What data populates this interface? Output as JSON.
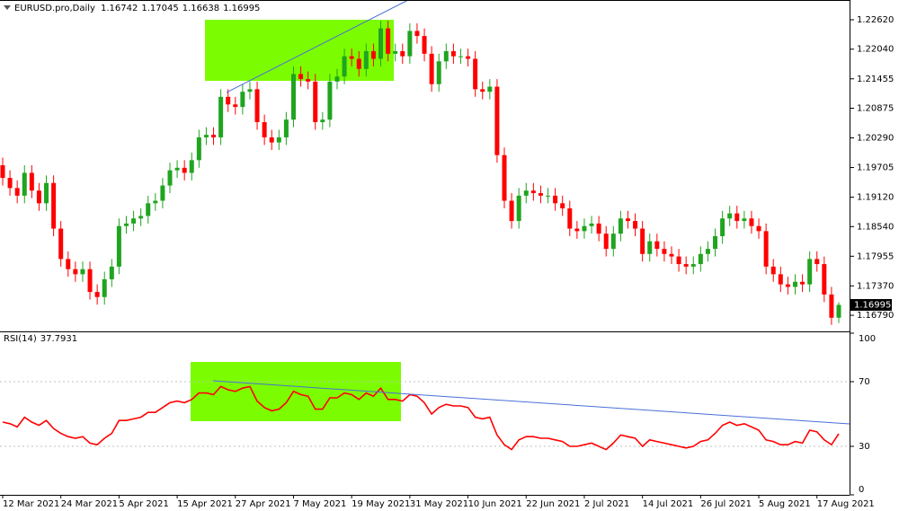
{
  "chart_data": [
    {
      "type": "candlestick",
      "title": "EURUSD.pro,Daily",
      "categories": [
        "12 Mar 2021",
        null,
        null,
        null,
        null,
        null,
        null,
        null,
        "24 Mar 2021",
        null,
        null,
        null,
        null,
        null,
        null,
        null,
        "5 Apr 2021",
        null,
        null,
        null,
        null,
        null,
        null,
        null,
        "15 Apr 2021",
        null,
        null,
        null,
        null,
        null,
        null,
        null,
        "27 Apr 2021",
        null,
        null,
        null,
        null,
        null,
        null,
        null,
        "7 May 2021",
        null,
        null,
        null,
        null,
        null,
        null,
        null,
        "19 May 2021",
        null,
        null,
        null,
        null,
        null,
        null,
        null,
        "31 May 2021",
        null,
        null,
        null,
        null,
        null,
        null,
        null,
        "10 Jun 2021",
        null,
        null,
        null,
        null,
        null,
        null,
        null,
        "22 Jun 2021",
        null,
        null,
        null,
        null,
        null,
        null,
        null,
        "2 Jul 2021",
        null,
        null,
        null,
        null,
        null,
        null,
        null,
        "14 Jul 2021",
        null,
        null,
        null,
        null,
        null,
        null,
        null,
        "26 Jul 2021",
        null,
        null,
        null,
        null,
        null,
        null,
        null,
        "5 Aug 2021",
        null,
        null,
        null,
        null,
        null,
        null,
        null,
        "17 Aug 2021",
        null,
        null,
        null
      ],
      "open": [
        1.1975,
        1.195,
        1.193,
        1.1915,
        1.196,
        1.1925,
        1.19,
        1.194,
        1.185,
        1.179,
        1.177,
        1.176,
        1.177,
        1.1725,
        1.1715,
        1.175,
        1.1775,
        1.1855,
        1.186,
        1.187,
        1.1875,
        1.19,
        1.1905,
        1.1935,
        1.1965,
        1.197,
        1.196,
        1.1985,
        1.203,
        1.2035,
        1.203,
        1.211,
        1.2095,
        1.209,
        1.212,
        1.2125,
        1.206,
        1.203,
        1.202,
        1.203,
        1.2065,
        1.2155,
        1.2145,
        1.214,
        1.206,
        1.2065,
        1.214,
        1.215,
        1.219,
        1.2185,
        1.2165,
        1.22,
        1.2185,
        1.2245,
        1.2195,
        1.22,
        1.219,
        1.224,
        1.223,
        1.2195,
        1.2135,
        1.218,
        1.22,
        1.219,
        1.219,
        1.2185,
        1.2125,
        1.212,
        1.213,
        1.1995,
        1.1905,
        1.1865,
        1.1915,
        1.1925,
        1.192,
        1.1915,
        1.1915,
        1.19,
        1.189,
        1.185,
        1.1845,
        1.1855,
        1.186,
        1.184,
        1.181,
        1.184,
        1.187,
        1.1865,
        1.185,
        1.18,
        1.1825,
        1.181,
        1.18,
        1.1795,
        1.178,
        1.1775,
        1.178,
        1.18,
        1.181,
        1.1835,
        1.187,
        1.188,
        1.1865,
        1.187,
        1.1855,
        1.1845,
        1.1775,
        1.176,
        1.174,
        1.1735,
        1.1745,
        1.174,
        1.179,
        1.178,
        1.172,
        1.16742
      ],
      "high": [
        1.199,
        1.1965,
        1.1945,
        1.1975,
        1.1975,
        1.194,
        1.1955,
        1.1955,
        1.1865,
        1.1805,
        1.1785,
        1.1785,
        1.1785,
        1.174,
        1.1765,
        1.179,
        1.187,
        1.1875,
        1.1885,
        1.189,
        1.1915,
        1.192,
        1.195,
        1.198,
        1.1985,
        1.1985,
        1.2,
        1.2045,
        1.205,
        1.205,
        1.2125,
        1.2125,
        1.211,
        1.2135,
        1.214,
        1.214,
        1.2075,
        1.2045,
        1.2045,
        1.208,
        1.217,
        1.217,
        1.216,
        1.2155,
        1.208,
        1.2155,
        1.2165,
        1.2205,
        1.2205,
        1.22,
        1.2215,
        1.2215,
        1.226,
        1.226,
        1.2215,
        1.2215,
        1.2255,
        1.2255,
        1.2245,
        1.221,
        1.2195,
        1.2215,
        1.2215,
        1.2205,
        1.2205,
        1.22,
        1.214,
        1.2145,
        1.2145,
        1.201,
        1.192,
        1.193,
        1.194,
        1.194,
        1.1935,
        1.193,
        1.193,
        1.1915,
        1.1905,
        1.1865,
        1.187,
        1.1875,
        1.1875,
        1.1855,
        1.1855,
        1.1885,
        1.1885,
        1.188,
        1.1865,
        1.184,
        1.184,
        1.1825,
        1.1815,
        1.181,
        1.1795,
        1.1795,
        1.1815,
        1.1825,
        1.185,
        1.1885,
        1.1895,
        1.1895,
        1.1885,
        1.1885,
        1.187,
        1.186,
        1.179,
        1.1775,
        1.1755,
        1.176,
        1.176,
        1.1805,
        1.1805,
        1.1795,
        1.1735,
        1.17045
      ],
      "low": [
        1.1935,
        1.1915,
        1.19,
        1.19,
        1.191,
        1.1885,
        1.1885,
        1.1835,
        1.1775,
        1.1755,
        1.1745,
        1.1745,
        1.171,
        1.17,
        1.17,
        1.1735,
        1.176,
        1.184,
        1.1845,
        1.1855,
        1.186,
        1.1885,
        1.189,
        1.192,
        1.195,
        1.1945,
        1.1945,
        1.197,
        1.2015,
        1.2015,
        1.2015,
        1.208,
        1.2075,
        1.2075,
        1.2105,
        1.2045,
        1.2015,
        1.2005,
        1.2005,
        1.2015,
        1.205,
        1.213,
        1.2125,
        1.2045,
        1.2045,
        1.205,
        1.2125,
        1.2135,
        1.217,
        1.215,
        1.215,
        1.217,
        1.217,
        1.218,
        1.218,
        1.2175,
        1.2175,
        1.2215,
        1.218,
        1.212,
        1.212,
        1.2165,
        1.2175,
        1.2175,
        1.217,
        1.211,
        1.2105,
        1.2105,
        1.198,
        1.189,
        1.185,
        1.185,
        1.19,
        1.1905,
        1.19,
        1.19,
        1.1885,
        1.1875,
        1.1835,
        1.183,
        1.183,
        1.184,
        1.1825,
        1.1795,
        1.1795,
        1.1825,
        1.185,
        1.1835,
        1.1785,
        1.1785,
        1.1795,
        1.1785,
        1.178,
        1.1765,
        1.176,
        1.176,
        1.1765,
        1.1785,
        1.1795,
        1.182,
        1.1855,
        1.185,
        1.185,
        1.184,
        1.183,
        1.176,
        1.1745,
        1.1725,
        1.172,
        1.172,
        1.1725,
        1.1725,
        1.1765,
        1.1705,
        1.166,
        1.16638
      ],
      "close": [
        1.195,
        1.193,
        1.1915,
        1.196,
        1.1925,
        1.19,
        1.194,
        1.185,
        1.179,
        1.177,
        1.176,
        1.177,
        1.1725,
        1.1715,
        1.175,
        1.1775,
        1.1855,
        1.186,
        1.187,
        1.1875,
        1.19,
        1.1905,
        1.1935,
        1.1965,
        1.197,
        1.196,
        1.1985,
        1.203,
        1.2035,
        1.203,
        1.211,
        1.2095,
        1.209,
        1.212,
        1.2125,
        1.206,
        1.203,
        1.202,
        1.203,
        1.2065,
        1.2155,
        1.2145,
        1.214,
        1.206,
        1.2065,
        1.214,
        1.215,
        1.219,
        1.2185,
        1.2165,
        1.22,
        1.2185,
        1.2245,
        1.2195,
        1.22,
        1.219,
        1.224,
        1.223,
        1.2195,
        1.2135,
        1.218,
        1.22,
        1.219,
        1.219,
        1.2185,
        1.2125,
        1.212,
        1.213,
        1.1995,
        1.1905,
        1.1865,
        1.1915,
        1.1925,
        1.192,
        1.1915,
        1.1915,
        1.19,
        1.189,
        1.185,
        1.1845,
        1.1855,
        1.186,
        1.184,
        1.181,
        1.184,
        1.187,
        1.1865,
        1.185,
        1.18,
        1.1825,
        1.181,
        1.18,
        1.1795,
        1.178,
        1.1775,
        1.178,
        1.18,
        1.181,
        1.1835,
        1.187,
        1.188,
        1.1865,
        1.187,
        1.1855,
        1.1845,
        1.1775,
        1.176,
        1.174,
        1.1735,
        1.1745,
        1.174,
        1.179,
        1.178,
        1.172,
        1.16742,
        1.16995
      ],
      "up_color": "#1fa51f",
      "down_color": "#ff0000",
      "ylim": [
        1.1649,
        1.2301
      ],
      "yticks": [
        {
          "value": 1.2262,
          "label": "1.22620"
        },
        {
          "value": 1.2204,
          "label": "1.22040"
        },
        1.21455,
        1.20875,
        {
          "value": 1.2029,
          "label": "1.20290"
        },
        1.19705,
        {
          "value": 1.1912,
          "label": "1.19120"
        },
        {
          "value": 1.1854,
          "label": "1.18540"
        },
        1.17955,
        {
          "value": 1.1737,
          "label": "1.17370"
        },
        {
          "value": 1.1679,
          "label": "1.16790"
        }
      ]
    },
    {
      "type": "line",
      "title": "RSI(14)",
      "values": [
        45,
        44,
        42,
        48,
        45,
        43,
        46,
        41,
        38,
        36,
        35,
        36,
        32,
        31,
        35,
        38,
        46,
        46,
        47,
        48,
        51,
        51,
        54,
        57,
        58,
        57,
        59,
        63,
        63,
        62,
        67,
        65,
        64,
        66,
        67,
        58,
        54,
        52,
        53,
        57,
        64,
        62,
        61,
        53,
        53,
        60,
        60,
        63,
        62,
        59,
        63,
        61,
        66,
        59,
        59,
        58,
        62,
        61,
        57,
        50,
        54,
        56,
        55,
        55,
        54,
        48,
        47,
        48,
        37,
        31,
        28,
        34,
        36,
        36,
        35,
        35,
        34,
        33,
        30,
        30,
        31,
        32,
        30,
        28,
        32,
        37,
        36,
        35,
        30,
        34,
        33,
        32,
        31,
        30,
        29,
        30,
        33,
        34,
        38,
        43,
        45,
        43,
        44,
        42,
        40,
        34,
        33,
        31,
        31,
        33,
        32,
        40,
        39,
        34,
        31,
        37.7931
      ],
      "color": "#ff0000",
      "ylim": [
        0,
        100
      ],
      "yticks": [
        100,
        70,
        30,
        0
      ],
      "levels": [
        70,
        30
      ]
    }
  ]
}
